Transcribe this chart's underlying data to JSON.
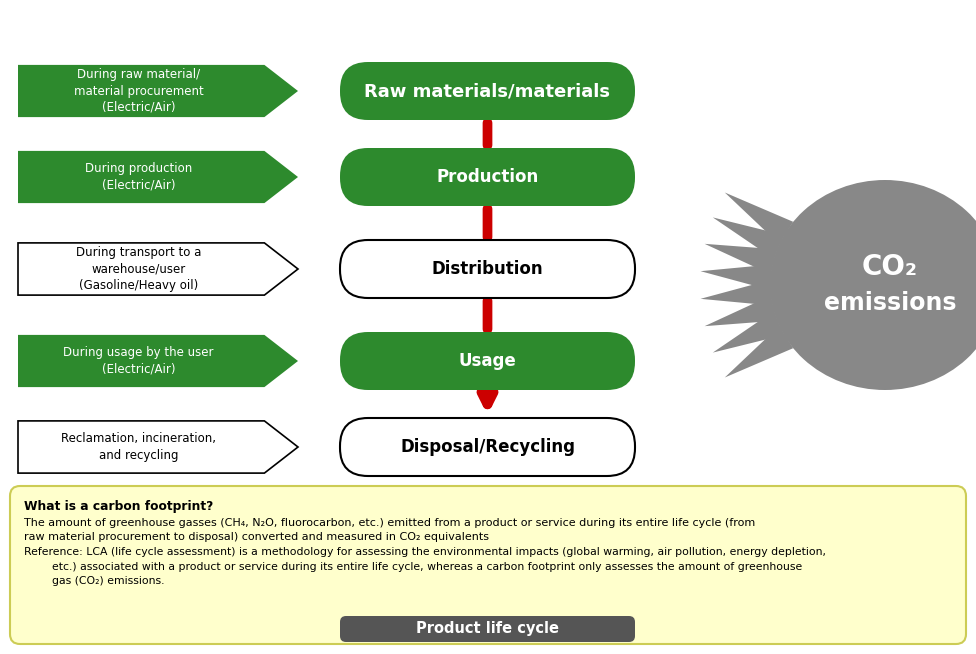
{
  "title": "Product life cycle",
  "title_bg": "#555555",
  "title_text_color": "#ffffff",
  "green_color": "#2d8a2d",
  "white_color": "#ffffff",
  "black_color": "#000000",
  "gray_blob": "#888888",
  "red_color": "#cc0000",
  "bg_color": "#ffffff",
  "rows": [
    {
      "center": "Raw materials/materials",
      "green_center": true,
      "left": "During raw material/\nmaterial procurement\n(Electric/Air)",
      "green_left": true
    },
    {
      "center": "Production",
      "green_center": true,
      "left": "During production\n(Electric/Air)",
      "green_left": true
    },
    {
      "center": "Distribution",
      "green_center": false,
      "left": "During transport to a\nwarehouse/user\n(Gasoline/Heavy oil)",
      "green_left": false
    },
    {
      "center": "Usage",
      "green_center": true,
      "left": "During usage by the user\n(Electric/Air)",
      "green_left": true
    },
    {
      "center": "Disposal/Recycling",
      "green_center": false,
      "left": "Reclamation, incineration,\nand recycling",
      "green_left": false
    }
  ],
  "co2_line1": "CO",
  "co2_sub": "2",
  "co2_line2": "emissions",
  "footnote_title": "What is a carbon footprint?",
  "footnote_lines": [
    "The amount of greenhouse gasses (CH₄, N₂O, fluorocarbon, etc.) emitted from a product or service during its entire life cycle (from",
    "raw material procurement to disposal) converted and measured in CO₂ equivalents",
    "Reference: LCA (life cycle assessment) is a methodology for assessing the environmental impacts (global warming, air pollution, energy depletion,",
    "        etc.) associated with a product or service during its entire life cycle, whereas a carbon footprint only assesses the amount of greenhouse",
    "        gas (CO₂) emissions."
  ],
  "footnote_bg": "#ffffcc",
  "footnote_border": "#cccc55"
}
